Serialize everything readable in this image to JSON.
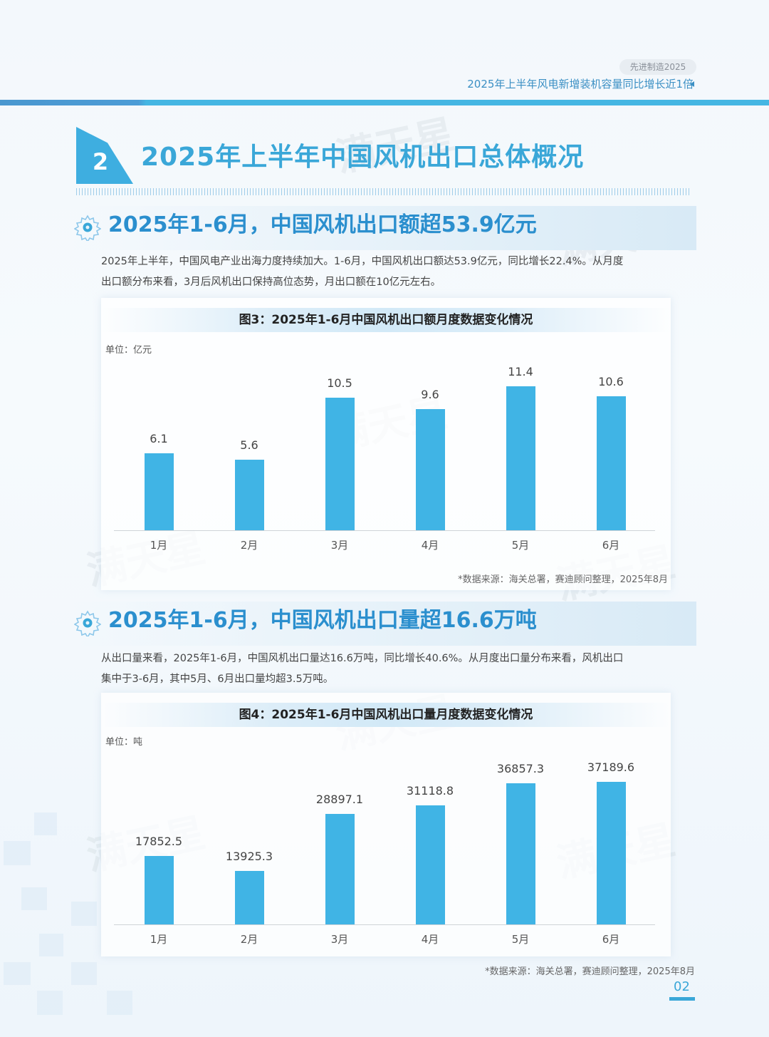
{
  "header": {
    "tag": "先进制造2025",
    "title": "2025年上半年风电新增装机容量同比增长近1倍"
  },
  "section": {
    "number": "2",
    "title": "2025年上半年中国风机出口总体概况"
  },
  "blocks": [
    {
      "subtitle": "2025年1-6月，中国风机出口额超53.9亿元",
      "paragraph_line1": "2025年上半年，中国风电产业出海力度持续加大。1-6月，中国风机出口额达53.9亿元，同比增长22.4%。从月度",
      "paragraph_line2": "出口额分布来看，3月后风机出口保持高位态势，月出口额在10亿元左右。",
      "chart_title": "图3：2025年1-6月中国风机出口额月度数据变化情况",
      "unit": "单位：亿元",
      "source": "*数据来源：海关总署，赛迪顾问整理，2025年8月"
    },
    {
      "subtitle": "2025年1-6月，中国风机出口量超16.6万吨",
      "paragraph_line1": "从出口量来看，2025年1-6月，中国风机出口量达16.6万吨，同比增长40.6%。从月度出口量分布来看，风机出口",
      "paragraph_line2": "集中于3-6月，其中5月、6月出口量均超3.5万吨。",
      "chart_title": "图4：2025年1-6月中国风机出口量月度数据变化情况",
      "unit": "单位：吨",
      "source": "*数据来源：海关总署，赛迪顾问整理，2025年8月"
    }
  ],
  "chart_data": [
    {
      "type": "bar",
      "title": "图3：2025年1-6月中国风机出口额月度数据变化情况",
      "xlabel": "",
      "ylabel": "单位：亿元",
      "categories": [
        "1月",
        "2月",
        "3月",
        "4月",
        "5月",
        "6月"
      ],
      "values": [
        6.1,
        5.6,
        10.5,
        9.6,
        11.4,
        10.6
      ],
      "labels": [
        "6.1",
        "5.6",
        "10.5",
        "9.6",
        "11.4",
        "10.6"
      ],
      "grid": false,
      "legend": "none",
      "bar_color": "#40b4e5"
    },
    {
      "type": "bar",
      "title": "图4：2025年1-6月中国风机出口量月度数据变化情况",
      "xlabel": "",
      "ylabel": "单位：吨",
      "categories": [
        "1月",
        "2月",
        "3月",
        "4月",
        "5月",
        "6月"
      ],
      "values": [
        17852.5,
        13925.3,
        28897.1,
        31118.8,
        36857.3,
        37189.6
      ],
      "labels": [
        "17852.5",
        "13925.3",
        "28897.1",
        "31118.8",
        "36857.3",
        "37189.6"
      ],
      "grid": false,
      "legend": "none",
      "bar_color": "#40b4e5"
    }
  ],
  "footer": {
    "page_number": "02"
  },
  "watermark": "满天星",
  "colors": {
    "accent": "#3aa7d8",
    "bar": "#40b4e5",
    "subtitle": "#2b8fce",
    "header_link": "#3b8fc4"
  }
}
